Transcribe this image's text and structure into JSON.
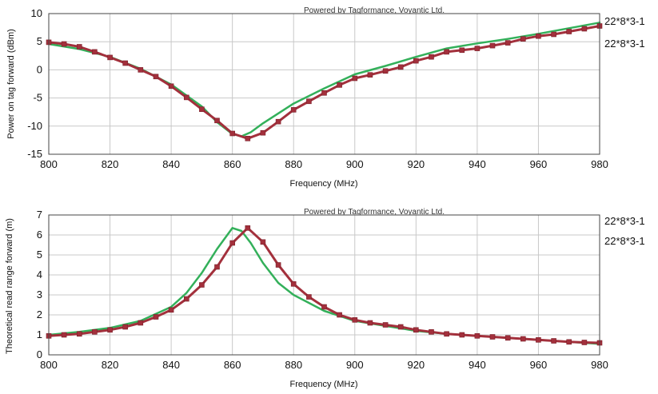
{
  "chart_data": [
    {
      "type": "line",
      "credit": "Powered by Tagformance, Voyantic Ltd.",
      "xlabel": "Frequency (MHz)",
      "ylabel": "Power on tag forward (dBm)",
      "xlim": [
        800,
        980
      ],
      "ylim": [
        -15,
        10
      ],
      "xticks": [
        800,
        820,
        840,
        860,
        880,
        900,
        920,
        940,
        960,
        980
      ],
      "yticks": [
        10,
        5,
        0,
        -5,
        -10,
        -15
      ],
      "grid": true,
      "legend_position": "right",
      "series": [
        {
          "name": "22*8*3-1",
          "color": "#33b05a",
          "markers": false,
          "x": [
            800,
            810,
            820,
            830,
            840,
            850,
            855,
            860,
            863,
            866,
            870,
            880,
            890,
            900,
            910,
            920,
            930,
            940,
            950,
            960,
            970,
            980
          ],
          "y": [
            4.6,
            3.7,
            2.3,
            0.2,
            -2.6,
            -6.5,
            -9.3,
            -11.4,
            -11.8,
            -11.1,
            -9.5,
            -6.0,
            -3.3,
            -0.8,
            0.7,
            2.3,
            3.8,
            4.7,
            5.5,
            6.4,
            7.4,
            8.4
          ]
        },
        {
          "name": "22*8*3-1",
          "color": "#a3303c",
          "markers": true,
          "x": [
            800,
            805,
            810,
            815,
            820,
            825,
            830,
            835,
            840,
            845,
            850,
            855,
            860,
            865,
            870,
            875,
            880,
            885,
            890,
            895,
            900,
            905,
            910,
            915,
            920,
            925,
            930,
            935,
            940,
            945,
            950,
            955,
            960,
            965,
            970,
            975,
            980
          ],
          "y": [
            4.9,
            4.6,
            4.1,
            3.2,
            2.2,
            1.2,
            0.0,
            -1.2,
            -2.9,
            -4.9,
            -7.0,
            -9.0,
            -11.3,
            -12.2,
            -11.2,
            -9.2,
            -7.1,
            -5.6,
            -4.1,
            -2.7,
            -1.5,
            -0.9,
            -0.2,
            0.5,
            1.6,
            2.3,
            3.2,
            3.5,
            3.8,
            4.3,
            4.8,
            5.5,
            6.0,
            6.3,
            6.8,
            7.3,
            7.8
          ]
        }
      ]
    },
    {
      "type": "line",
      "credit": "Powered by Tagformance, Voyantic Ltd.",
      "xlabel": "Frequency (MHz)",
      "ylabel": "Theoretical read range forward (m)",
      "xlim": [
        800,
        980
      ],
      "ylim": [
        0,
        7
      ],
      "xticks": [
        800,
        820,
        840,
        860,
        880,
        900,
        920,
        940,
        960,
        980
      ],
      "yticks": [
        7,
        6,
        5,
        4,
        3,
        2,
        1,
        0
      ],
      "grid": true,
      "legend_position": "right",
      "series": [
        {
          "name": "22*8*3-1",
          "color": "#33b05a",
          "markers": false,
          "x": [
            800,
            810,
            820,
            830,
            840,
            845,
            850,
            855,
            860,
            863,
            866,
            870,
            875,
            880,
            890,
            900,
            910,
            920,
            930,
            940,
            950,
            960,
            970,
            980
          ],
          "y": [
            1.0,
            1.15,
            1.35,
            1.7,
            2.4,
            3.1,
            4.1,
            5.3,
            6.35,
            6.2,
            5.6,
            4.6,
            3.6,
            3.0,
            2.2,
            1.7,
            1.45,
            1.2,
            1.05,
            0.95,
            0.85,
            0.75,
            0.65,
            0.55
          ]
        },
        {
          "name": "22*8*3-1",
          "color": "#a3303c",
          "markers": true,
          "x": [
            800,
            805,
            810,
            815,
            820,
            825,
            830,
            835,
            840,
            845,
            850,
            855,
            860,
            865,
            870,
            875,
            880,
            885,
            890,
            895,
            900,
            905,
            910,
            915,
            920,
            925,
            930,
            935,
            940,
            945,
            950,
            955,
            960,
            965,
            970,
            975,
            980
          ],
          "y": [
            0.95,
            1.0,
            1.05,
            1.15,
            1.25,
            1.4,
            1.6,
            1.9,
            2.25,
            2.8,
            3.5,
            4.4,
            5.6,
            6.35,
            5.65,
            4.5,
            3.55,
            2.9,
            2.4,
            2.0,
            1.75,
            1.6,
            1.5,
            1.4,
            1.25,
            1.15,
            1.05,
            1.0,
            0.95,
            0.9,
            0.85,
            0.8,
            0.75,
            0.7,
            0.65,
            0.62,
            0.6
          ]
        }
      ]
    }
  ]
}
